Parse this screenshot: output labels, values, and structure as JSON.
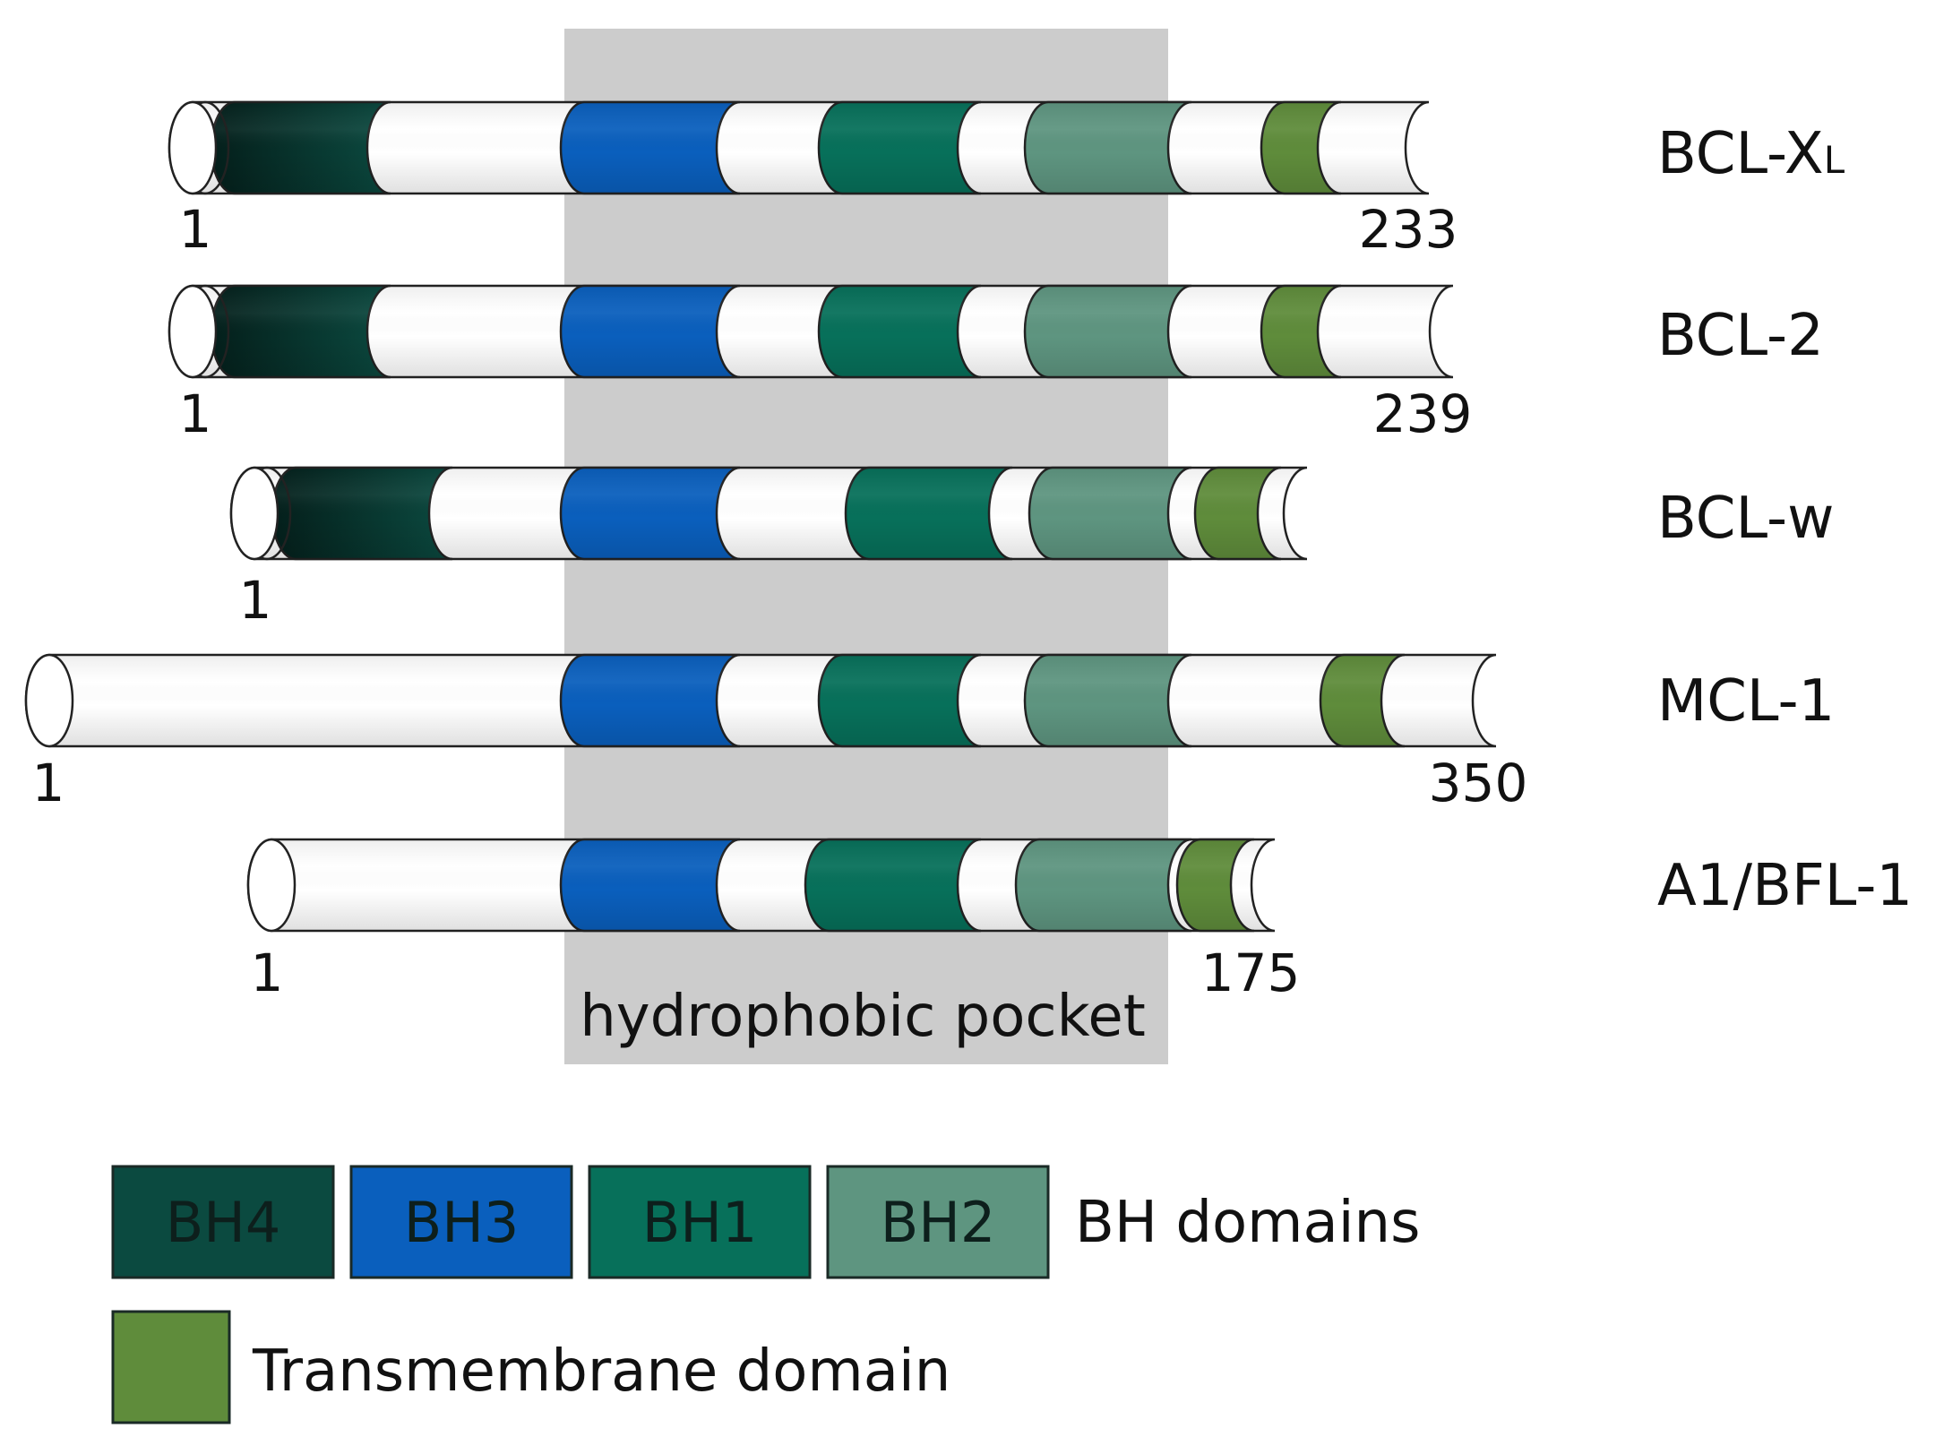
{
  "pocket": {
    "label": "hydrophobic pocket"
  },
  "domain_colors": {
    "BH4": "#0b4a40",
    "BH3": "#0a5fbd",
    "BH1": "#07705a",
    "BH2": "#5e9580",
    "TM": "#5f8c3b"
  },
  "proteins": [
    {
      "name_main": "BCL-X",
      "name_sub": "L",
      "start": "1",
      "end": "233"
    },
    {
      "name_main": "BCL-2",
      "name_sub": "",
      "start": "1",
      "end": "239"
    },
    {
      "name_main": "BCL-w",
      "name_sub": "",
      "start": "1",
      "end": ""
    },
    {
      "name_main": "MCL-1",
      "name_sub": "",
      "start": "1",
      "end": "350"
    },
    {
      "name_main": "A1/BFL-1",
      "name_sub": "",
      "start": "1",
      "end": "175"
    }
  ],
  "legend": {
    "bh": [
      {
        "key": "BH4",
        "label": "BH4"
      },
      {
        "key": "BH3",
        "label": "BH3"
      },
      {
        "key": "BH1",
        "label": "BH1"
      },
      {
        "key": "BH2",
        "label": "BH2"
      }
    ],
    "bh_label": "BH domains",
    "tm_label": "Transmembrane domain"
  }
}
